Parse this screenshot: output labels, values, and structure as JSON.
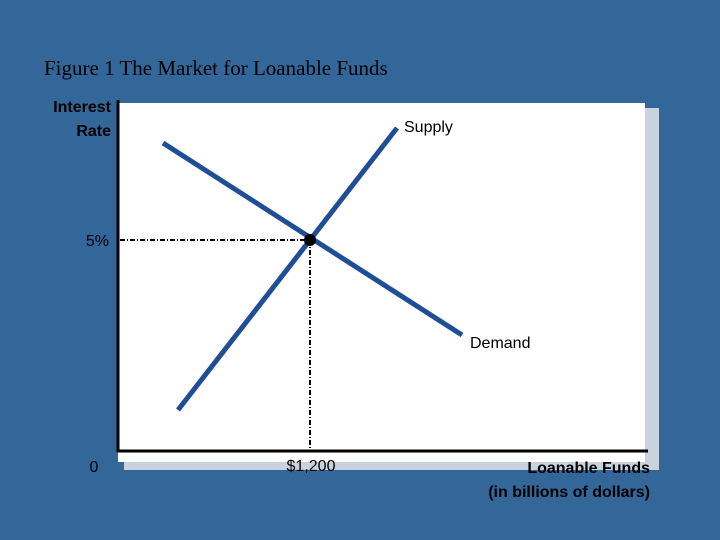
{
  "header": {
    "title": "Figure 1 The Market for Loanable Funds"
  },
  "diagram": {
    "y_axis_label": [
      "Interest",
      "Rate"
    ],
    "x_axis_label": [
      "Loanable Funds",
      "(in billions of dollars)"
    ],
    "curves": [
      {
        "label": "Supply"
      },
      {
        "label": "Demand"
      }
    ],
    "equilibrium": {
      "rate_label": "5%",
      "quantity_label": "$1,200"
    },
    "origin_label": "0"
  }
}
